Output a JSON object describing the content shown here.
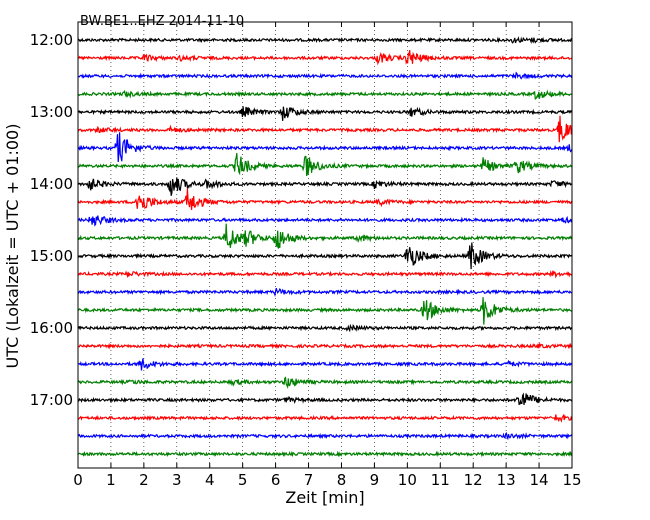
{
  "chart_data": {
    "type": "line",
    "title": "BW.BE1..EHZ 2014-11-10",
    "xlabel": "Zeit  [min]",
    "ylabel": "UTC (Lokalzeit = UTC + 01:00)",
    "xlim": [
      0,
      15
    ],
    "x_ticks": [
      "0",
      "1",
      "2",
      "3",
      "4",
      "5",
      "6",
      "7",
      "8",
      "9",
      "10",
      "11",
      "12",
      "13",
      "14",
      "15"
    ],
    "y_tick_labels": [
      "12:00",
      "13:00",
      "14:00",
      "15:00",
      "16:00",
      "17:00"
    ],
    "grid": "vertical dotted",
    "colors": [
      "#000000",
      "#ff0000",
      "#0000ff",
      "#007f00"
    ],
    "series": [
      {
        "start": "12:00",
        "color": "#000000",
        "events": [
          [
            13.2,
            0.15
          ],
          [
            13.8,
            0.1
          ]
        ]
      },
      {
        "start": "12:15",
        "color": "#ff0000",
        "events": [
          [
            2.0,
            0.2
          ],
          [
            3.1,
            0.15
          ],
          [
            9.1,
            0.35
          ],
          [
            10.0,
            0.6
          ]
        ]
      },
      {
        "start": "12:30",
        "color": "#0000ff",
        "events": [
          [
            13.3,
            0.15
          ]
        ]
      },
      {
        "start": "12:45",
        "color": "#007f00",
        "events": [
          [
            1.4,
            0.15
          ],
          [
            13.9,
            0.35
          ]
        ]
      },
      {
        "start": "13:00",
        "color": "#000000",
        "events": [
          [
            5.0,
            0.35
          ],
          [
            6.2,
            0.55
          ],
          [
            10.1,
            0.3
          ]
        ]
      },
      {
        "start": "13:15",
        "color": "#ff0000",
        "events": [
          [
            0.6,
            0.15
          ],
          [
            2.8,
            0.15
          ],
          [
            14.6,
            1.0
          ]
        ]
      },
      {
        "start": "13:30",
        "color": "#0000ff",
        "events": [
          [
            1.2,
            1.2
          ],
          [
            14.9,
            0.2
          ]
        ]
      },
      {
        "start": "13:45",
        "color": "#007f00",
        "events": [
          [
            4.8,
            0.9
          ],
          [
            6.9,
            0.8
          ],
          [
            12.3,
            0.5
          ],
          [
            13.3,
            0.5
          ]
        ]
      },
      {
        "start": "14:00",
        "color": "#000000",
        "events": [
          [
            0.3,
            0.5
          ],
          [
            2.8,
            0.9
          ],
          [
            3.9,
            0.3
          ],
          [
            9.0,
            0.25
          ],
          [
            14.4,
            0.2
          ]
        ]
      },
      {
        "start": "14:15",
        "color": "#ff0000",
        "events": [
          [
            1.8,
            0.9
          ],
          [
            3.3,
            0.9
          ],
          [
            9.1,
            0.2
          ]
        ]
      },
      {
        "start": "14:30",
        "color": "#0000ff",
        "events": [
          [
            0.4,
            0.5
          ],
          [
            14.7,
            0.15
          ]
        ]
      },
      {
        "start": "14:45",
        "color": "#007f00",
        "events": [
          [
            4.5,
            1.0
          ],
          [
            5.1,
            0.5
          ],
          [
            6.0,
            0.9
          ],
          [
            8.5,
            0.2
          ]
        ]
      },
      {
        "start": "15:00",
        "color": "#000000",
        "events": [
          [
            10.0,
            1.0
          ],
          [
            11.9,
            1.0
          ]
        ]
      },
      {
        "start": "15:15",
        "color": "#ff0000",
        "events": [
          [
            1.5,
            0.15
          ],
          [
            14.4,
            0.15
          ]
        ]
      },
      {
        "start": "15:30",
        "color": "#0000ff",
        "events": [
          [
            6.0,
            0.2
          ]
        ]
      },
      {
        "start": "15:45",
        "color": "#007f00",
        "events": [
          [
            10.5,
            0.9
          ],
          [
            12.3,
            1.0
          ]
        ]
      },
      {
        "start": "16:00",
        "color": "#000000",
        "events": [
          [
            8.2,
            0.15
          ]
        ]
      },
      {
        "start": "16:15",
        "color": "#ff0000",
        "events": [
          [
            13.9,
            0.1
          ]
        ]
      },
      {
        "start": "16:30",
        "color": "#0000ff",
        "events": [
          [
            1.9,
            0.4
          ],
          [
            13.0,
            0.15
          ]
        ]
      },
      {
        "start": "16:45",
        "color": "#007f00",
        "events": [
          [
            1.6,
            0.1
          ],
          [
            4.7,
            0.15
          ],
          [
            6.3,
            0.4
          ]
        ]
      },
      {
        "start": "17:00",
        "color": "#000000",
        "events": [
          [
            6.3,
            0.15
          ],
          [
            13.4,
            0.8
          ]
        ]
      },
      {
        "start": "17:15",
        "color": "#ff0000",
        "events": [
          [
            14.5,
            0.2
          ]
        ]
      },
      {
        "start": "17:30",
        "color": "#0000ff",
        "events": [
          [
            13.0,
            0.15
          ]
        ]
      },
      {
        "start": "17:45",
        "color": "#007f00",
        "events": []
      }
    ]
  }
}
